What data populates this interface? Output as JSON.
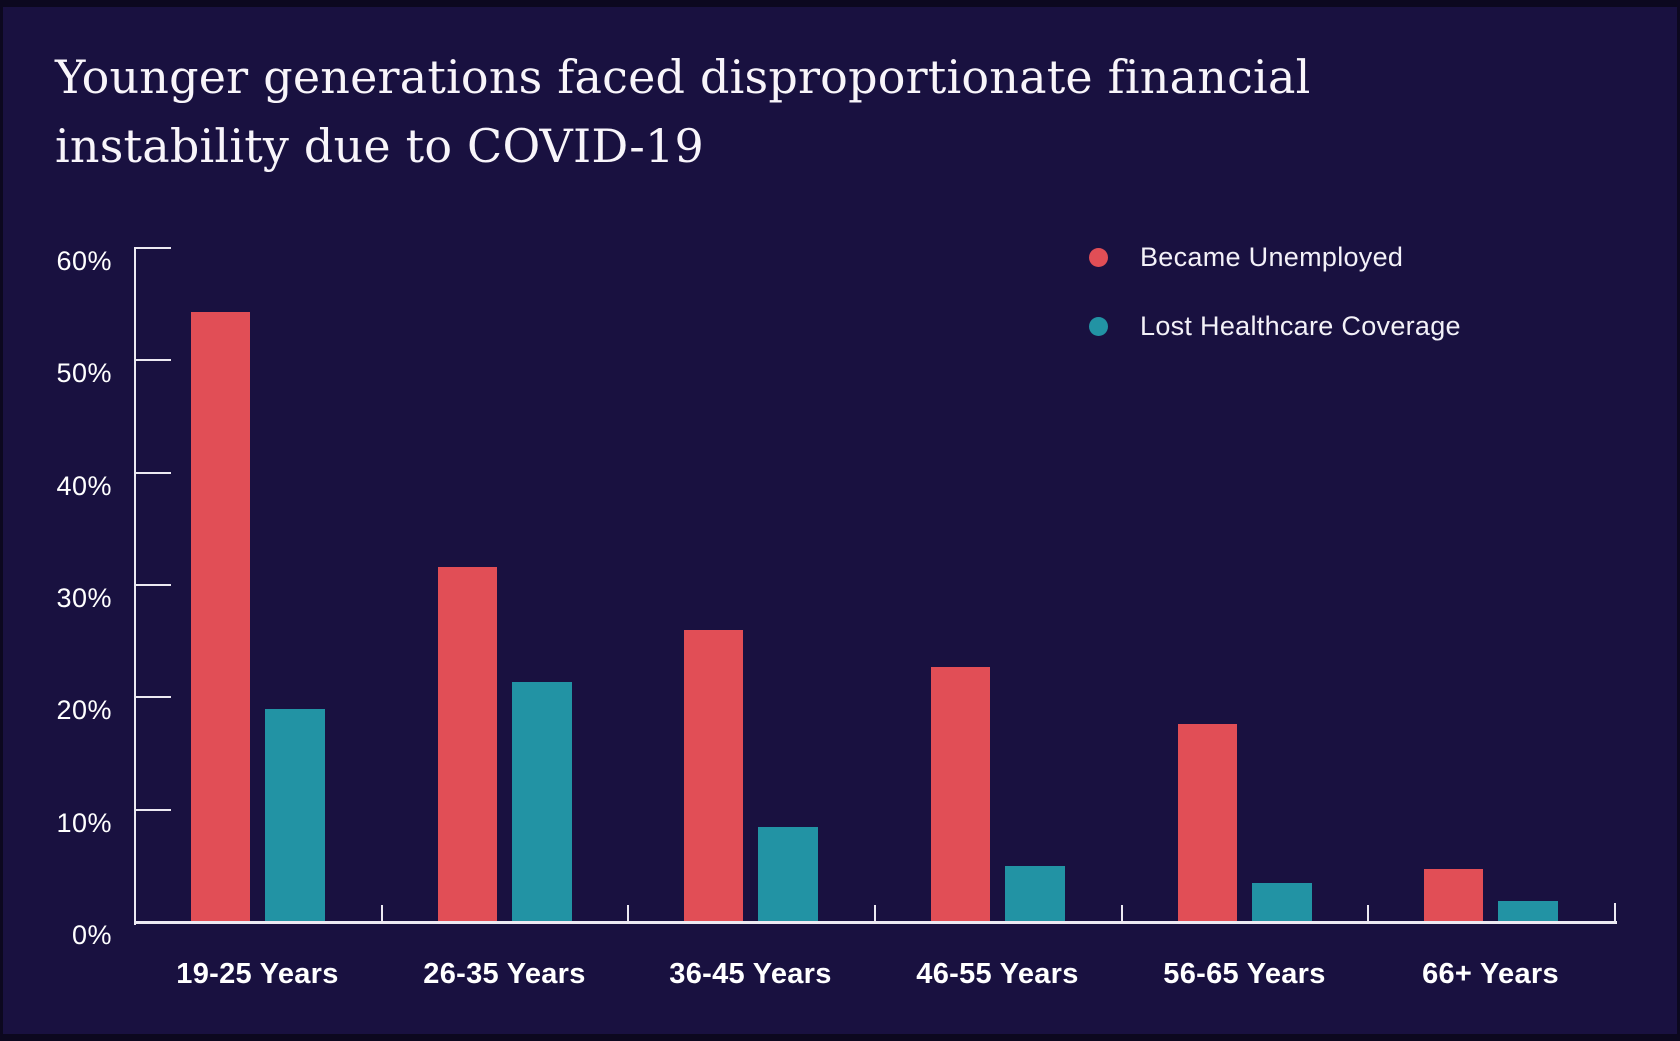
{
  "title": {
    "line1": "Younger generations faced disproportionate financial",
    "line2": "instability due to COVID-19"
  },
  "legend": [
    {
      "label": "Became Unemployed",
      "color": "#e14e56"
    },
    {
      "label": "Lost Healthcare Coverage",
      "color": "#2293a4"
    }
  ],
  "chart_data": {
    "type": "bar",
    "title": "Younger generations faced disproportionate financial instability due to COVID-19",
    "categories": [
      "19-25 Years",
      "26-35 Years",
      "36-45 Years",
      "46-55 Years",
      "56-65 Years",
      "66+ Years"
    ],
    "series": [
      {
        "name": "Became Unemployed",
        "color": "#e14e56",
        "values": [
          54.3,
          31.6,
          26.0,
          22.7,
          17.6,
          4.7
        ]
      },
      {
        "name": "Lost Healthcare Coverage",
        "color": "#2293a4",
        "values": [
          19.0,
          21.4,
          8.5,
          5.0,
          3.5,
          1.9
        ]
      }
    ],
    "ylabel": "",
    "xlabel": "",
    "ylim": [
      0,
      60
    ],
    "y_tick_values": [
      60,
      50,
      40,
      30,
      20,
      10,
      0
    ],
    "y_tick_labels": [
      "60%",
      "50%",
      "40%",
      "30%",
      "20%",
      "10%",
      "0%"
    ],
    "y_unit": "%",
    "grid": false,
    "legend_position": "top-right"
  },
  "colors": {
    "background": "#191140",
    "frame": "#0c081f",
    "axis": "#ece9f2",
    "text": "#ffffff",
    "bar_unemployed": "#e14e56",
    "bar_healthcare": "#2293a4"
  }
}
